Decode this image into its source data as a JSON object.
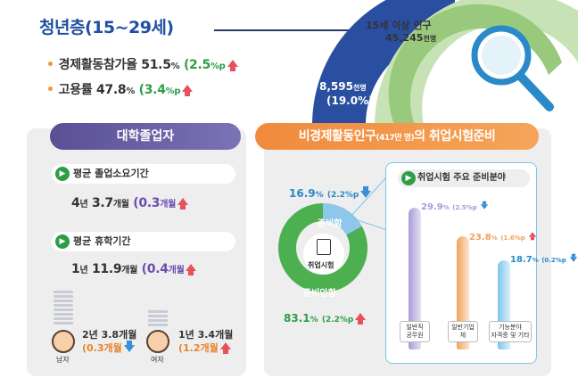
{
  "top": {
    "title": "청년층(15~29세)",
    "participation_label": "경제활동참가율",
    "participation_value": "51.5",
    "participation_unit": "%",
    "participation_change": "(2.5",
    "participation_change_unit": "%p",
    "employment_label": "고용률",
    "employment_value": "47.8",
    "employment_unit": "%",
    "employment_change": "(3.4",
    "employment_change_unit": "%p",
    "population_label": "15세 이상 인구",
    "population_value": "45,245",
    "population_unit": "천명",
    "youth_value": "8,595",
    "youth_unit": "천명",
    "youth_pct": "(19.0%)"
  },
  "left": {
    "header": "대학졸업자",
    "grad_period_label": "평균 졸업소요기간",
    "grad_years": "4",
    "grad_year_unit": "년",
    "grad_months": "3.7",
    "grad_month_unit": "개월",
    "grad_change": "(0.3",
    "grad_change_unit": "개월",
    "leave_label": "평균 휴학기간",
    "leave_years": "1",
    "leave_year_unit": "년",
    "leave_months": "11.9",
    "leave_month_unit": "개월",
    "leave_change": "(0.4",
    "leave_change_unit": "개월",
    "male_label": "남자",
    "male_stat": "2년 3.8개월",
    "male_change": "(0.3개월",
    "female_label": "여자",
    "female_stat": "1년 3.4개월",
    "female_change": "(1.2개월"
  },
  "right": {
    "header_main": "비경제활동인구",
    "header_small": "(417만 명)",
    "header_tail": "의 취업시험준비",
    "prep_value": "16.9",
    "prep_unit": "%",
    "prep_change": "(2.2%p",
    "notprep_value": "83.1",
    "notprep_unit": "%",
    "notprep_change": "(2.2%p",
    "prep_label": "준비함",
    "notprep_label": "준비안함",
    "center_label": "취업시험",
    "inner_title": "취업시험 주요 준비분야",
    "fields": [
      {
        "label_line1": "일반직",
        "label_line2": "공무원",
        "value": "29.9",
        "unit": "%",
        "change": "(2.5%p",
        "direction": "down",
        "share": 29.9,
        "color": "#a99ad6"
      },
      {
        "label_line1": "일반기업체",
        "label_line2": "",
        "value": "23.8",
        "unit": "%",
        "change": "(1.6%p",
        "direction": "up",
        "share": 23.8,
        "color": "#f0a35a"
      },
      {
        "label_line1": "기능분야",
        "label_line2": "자격증 및 기타",
        "value": "18.7",
        "unit": "%",
        "change": "(0.2%p",
        "direction": "down",
        "share": 18.7,
        "color": "#7cc6ea"
      }
    ]
  }
}
